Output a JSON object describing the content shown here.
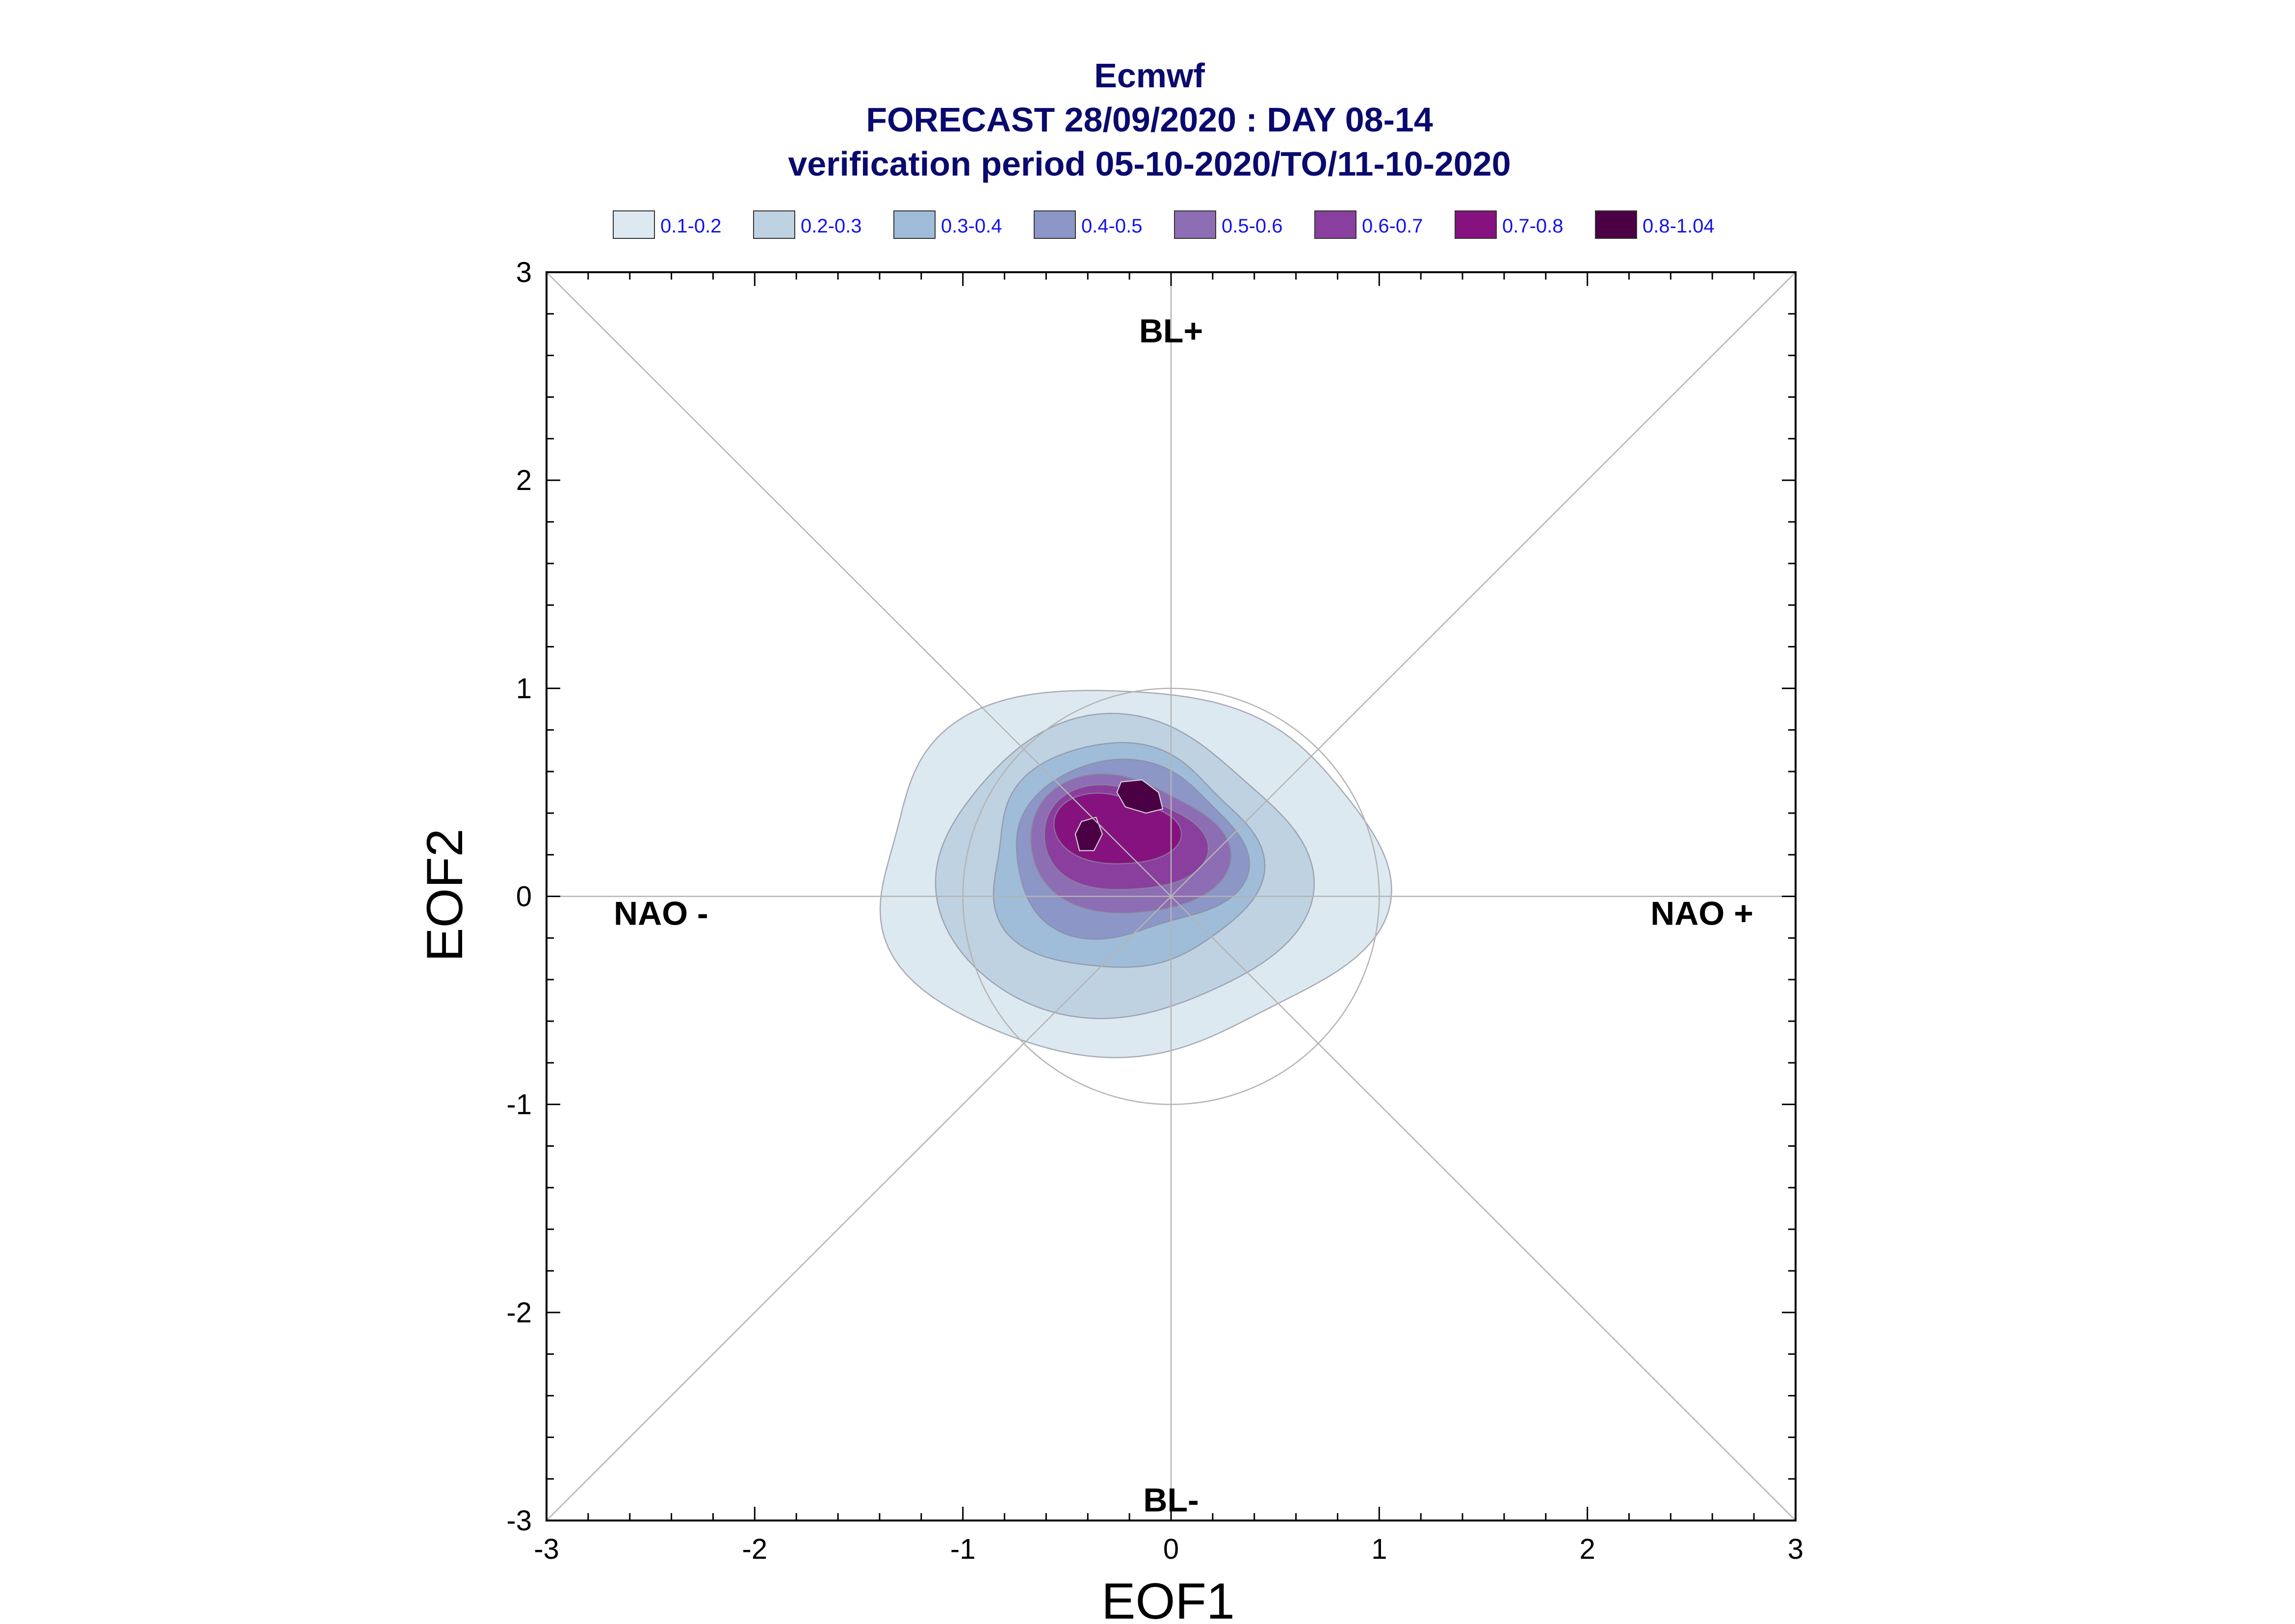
{
  "chart_data": {
    "type": "contour",
    "title_lines": [
      "Ecmwf",
      "FORECAST 28/09/2020 : DAY 08-14",
      "verification period 05-10-2020/TO/11-10-2020"
    ],
    "xlabel": "EOF1",
    "ylabel": "EOF2",
    "xlim": [
      -3,
      3
    ],
    "ylim": [
      -3,
      3
    ],
    "x_ticks": [
      "-3",
      "-2",
      "-1",
      "0",
      "1",
      "2",
      "3"
    ],
    "y_ticks": [
      "-3",
      "-2",
      "-1",
      "0",
      "1",
      "2",
      "3"
    ],
    "grid": false,
    "reference_lines": "diagonals and axes through origin",
    "unit_circle_radius": 1,
    "regime_labels": [
      {
        "text": "BL+",
        "x": 0,
        "y": 2.72
      },
      {
        "text": "BL-",
        "x": 0,
        "y": -2.9
      },
      {
        "text": "NAO -",
        "x": -2.45,
        "y": -0.08
      },
      {
        "text": "NAO +",
        "x": 2.55,
        "y": -0.08
      }
    ],
    "legend": {
      "placement": "top",
      "entries": [
        {
          "label": "0.1-0.2",
          "color": "#dde9f1"
        },
        {
          "label": "0.2-0.3",
          "color": "#bfd2e2"
        },
        {
          "label": "0.3-0.4",
          "color": "#9fbdd8"
        },
        {
          "label": "0.4-0.5",
          "color": "#8c97c7"
        },
        {
          "label": "0.5-0.6",
          "color": "#8d6db3"
        },
        {
          "label": "0.6-0.7",
          "color": "#8a3e9e"
        },
        {
          "label": "0.7-0.8",
          "color": "#86127f"
        },
        {
          "label": "0.8-1.04",
          "color": "#4b0046"
        }
      ]
    },
    "density_levels": [
      {
        "level": "0.1-0.2",
        "color": "#dde9f1",
        "cx": -0.22,
        "cy": 0.12,
        "rx": 1.21,
        "ry": 0.88,
        "bumps": [
          [
            3,
            0.04,
            0.3
          ],
          [
            5,
            0.03,
            1.2
          ]
        ],
        "tilt": 0.0
      },
      {
        "level": "0.2-0.3",
        "color": "#bfd2e2",
        "cx": -0.25,
        "cy": 0.12,
        "rx": 0.88,
        "ry": 0.71,
        "bumps": [
          [
            3,
            0.05,
            0.9
          ],
          [
            4,
            0.03,
            0.2
          ]
        ],
        "tilt": 0.0
      },
      {
        "level": "0.3-0.4",
        "color": "#9fbdd8",
        "cx": -0.24,
        "cy": 0.18,
        "rx": 0.64,
        "ry": 0.54,
        "bumps": [
          [
            3,
            0.06,
            0.7
          ],
          [
            5,
            0.03,
            0.1
          ]
        ],
        "tilt": 0.0
      },
      {
        "level": "0.4-0.5",
        "color": "#8c97c7",
        "cx": -0.22,
        "cy": 0.22,
        "rx": 0.55,
        "ry": 0.42,
        "bumps": [
          [
            3,
            0.07,
            0.6
          ],
          [
            4,
            0.04,
            1.4
          ]
        ],
        "tilt": 0.0
      },
      {
        "level": "0.5-0.6",
        "color": "#8d6db3",
        "cx": -0.22,
        "cy": 0.24,
        "rx": 0.46,
        "ry": 0.34,
        "bumps": [
          [
            2,
            0.08,
            1.1
          ],
          [
            3,
            0.06,
            0.4
          ]
        ],
        "tilt": 0.0
      },
      {
        "level": "0.6-0.7",
        "color": "#8a3e9e",
        "cx": -0.24,
        "cy": 0.27,
        "rx": 0.37,
        "ry": 0.26,
        "bumps": [
          [
            2,
            0.1,
            1.0
          ],
          [
            3,
            0.07,
            0.5
          ]
        ],
        "tilt": 0.0
      },
      {
        "level": "0.7-0.8",
        "color": "#86127f",
        "cx": -0.27,
        "cy": 0.32,
        "rx": 0.28,
        "ry": 0.18,
        "bumps": [
          [
            2,
            0.12,
            0.8
          ],
          [
            3,
            0.05,
            0.2
          ]
        ],
        "tilt": 0.0
      }
    ],
    "peaks": [
      {
        "level": "0.8-1.04",
        "color": "#4b0046",
        "points": [
          [
            -0.24,
            0.55
          ],
          [
            -0.14,
            0.56
          ],
          [
            -0.06,
            0.5
          ],
          [
            -0.04,
            0.42
          ],
          [
            -0.12,
            0.4
          ],
          [
            -0.22,
            0.43
          ],
          [
            -0.26,
            0.5
          ]
        ]
      },
      {
        "level": "0.8-1.04",
        "color": "#4b0046",
        "points": [
          [
            -0.43,
            0.36
          ],
          [
            -0.36,
            0.38
          ],
          [
            -0.33,
            0.3
          ],
          [
            -0.37,
            0.22
          ],
          [
            -0.44,
            0.22
          ],
          [
            -0.46,
            0.3
          ]
        ]
      }
    ]
  }
}
